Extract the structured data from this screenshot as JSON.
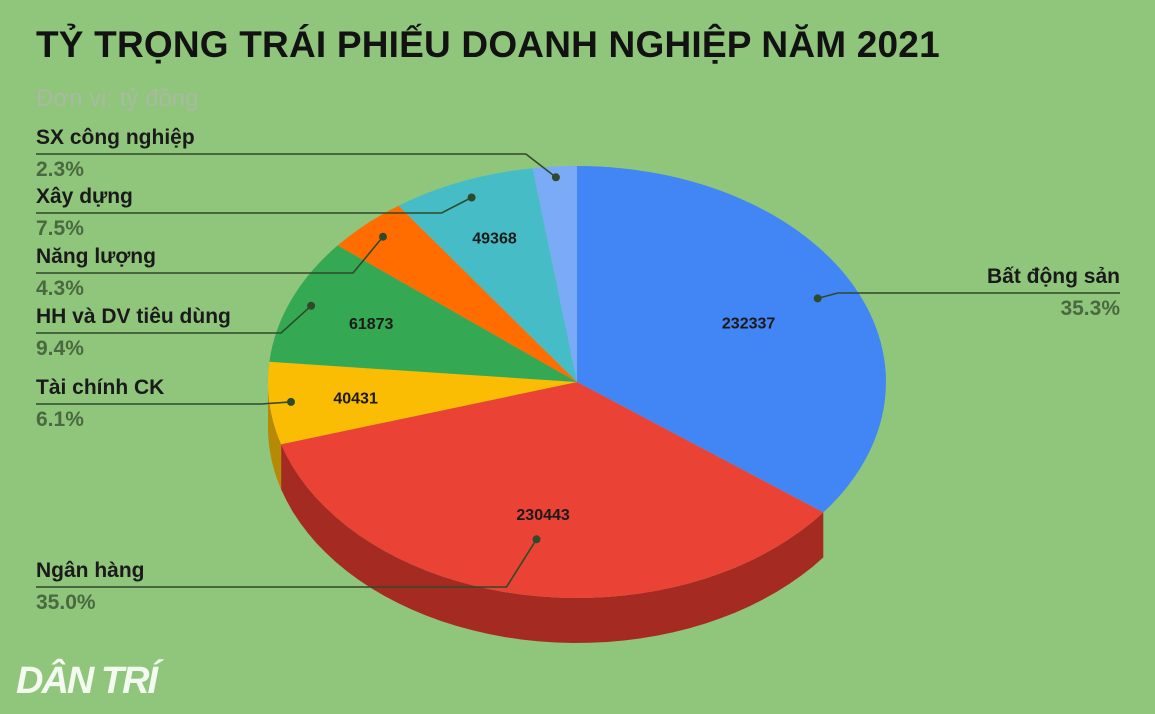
{
  "title": "TỶ TRỌNG TRÁI PHIẾU DOANH NGHIỆP NĂM 2021",
  "subtitle": "Đơn vị: tỷ đồng",
  "logo": "DÂN TRÍ",
  "chart_data": {
    "type": "pie",
    "title": "TỶ TRỌNG TRÁI PHIẾU DOANH NGHIỆP NĂM 2021",
    "subtitle": "Đơn vị: tỷ đồng",
    "slices": [
      {
        "name": "Bất động sản",
        "percent": "35.3%",
        "value": 232337,
        "value_label": "232337",
        "color": "#4285f4",
        "side_color": "#2f5fb3"
      },
      {
        "name": "Ngân hàng",
        "percent": "35.0%",
        "value": 230443,
        "value_label": "230443",
        "color": "#ea4335",
        "side_color": "#a52a22"
      },
      {
        "name": "Tài chính CK",
        "percent": "6.1%",
        "value": 40431,
        "value_label": "40431",
        "color": "#fbbc04",
        "side_color": "#b78a05"
      },
      {
        "name": "HH và DV tiêu dùng",
        "percent": "9.4%",
        "value": 61873,
        "value_label": "61873",
        "color": "#34a853",
        "side_color": "#23773a"
      },
      {
        "name": "Năng lượng",
        "percent": "4.3%",
        "value": 28300,
        "value_label": "",
        "color": "#ff6d01",
        "side_color": "#b34c00"
      },
      {
        "name": "Xây dựng",
        "percent": "7.5%",
        "value": 49368,
        "value_label": "49368",
        "color": "#46bdc6",
        "side_color": "#2f868d"
      },
      {
        "name": "SX công nghiệp",
        "percent": "2.3%",
        "value": 15100,
        "value_label": "",
        "color": "#7baaf7",
        "side_color": "#557bb5"
      }
    ]
  }
}
